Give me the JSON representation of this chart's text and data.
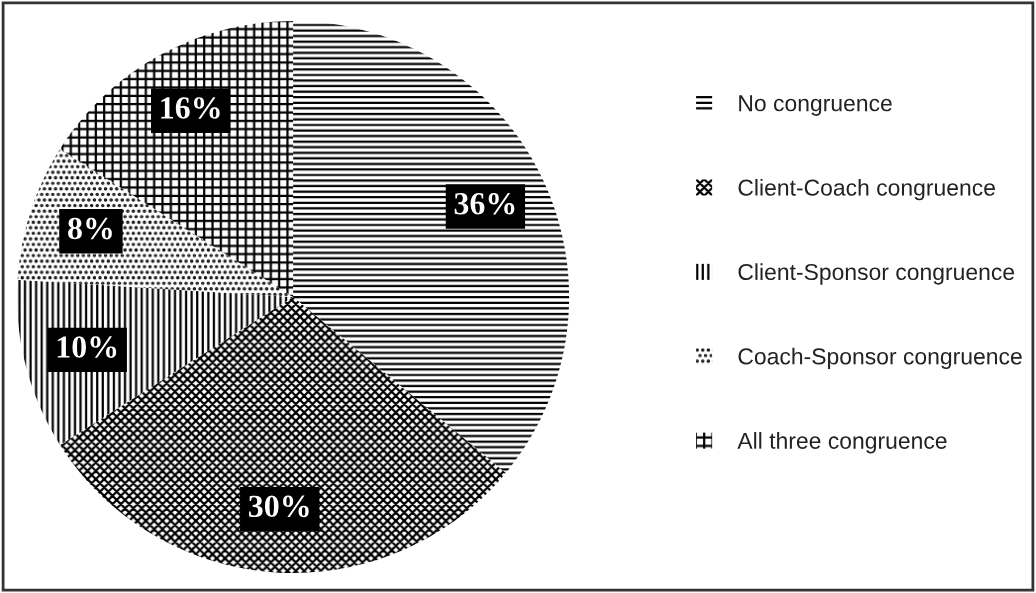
{
  "chart_data": {
    "type": "pie",
    "categories": [
      "No congruence",
      "Client-Coach congruence",
      "Client-Sponsor congruence",
      "Coach-Sponsor congruence",
      "All three congruence"
    ],
    "values": [
      36,
      30,
      10,
      8,
      16
    ],
    "colors": [
      "#000000",
      "#000000",
      "#000000",
      "#000000",
      "#000000"
    ],
    "value_labels": [
      "36%",
      "30%",
      "10%",
      "8%",
      "16%"
    ],
    "legend": "right"
  }
}
